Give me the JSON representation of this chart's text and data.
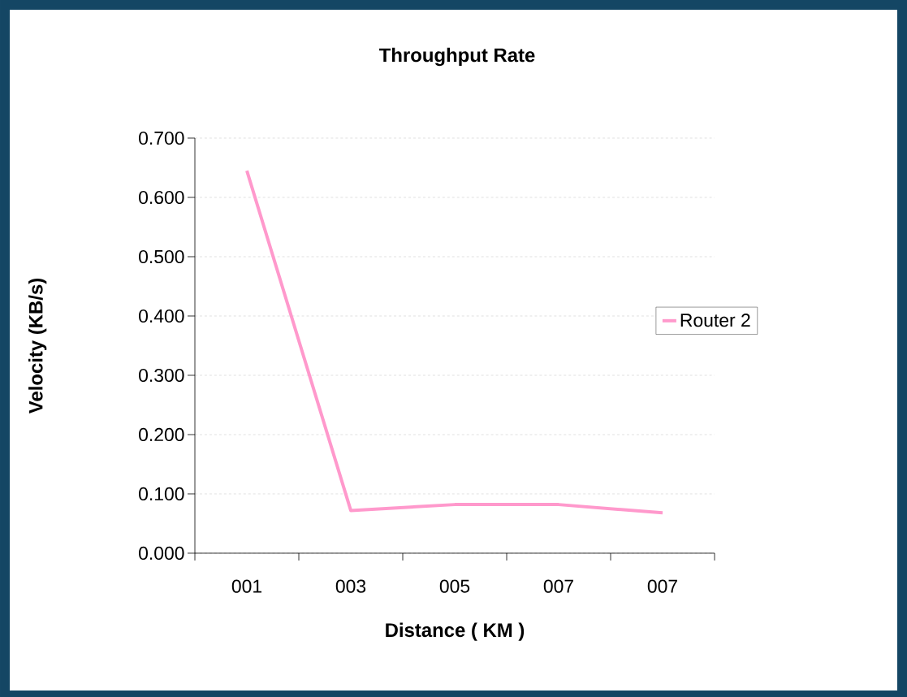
{
  "chart_data": {
    "type": "line",
    "title": "Throughput Rate",
    "xlabel": "Distance ( KM )",
    "ylabel": "Velocity (KB/s)",
    "categories": [
      "001",
      "003",
      "005",
      "007",
      "007"
    ],
    "series": [
      {
        "name": "Router 2",
        "color": "#ff99cc",
        "values": [
          0.645,
          0.072,
          0.082,
          0.082,
          0.068
        ]
      }
    ],
    "ylim": [
      0,
      0.7
    ],
    "yticks": [
      {
        "value": 0,
        "label": "0.000"
      },
      {
        "value": 0.1,
        "label": "0.100"
      },
      {
        "value": 0.2,
        "label": "0.200"
      },
      {
        "value": 0.3,
        "label": "0.300"
      },
      {
        "value": 0.4,
        "label": "0.400"
      },
      {
        "value": 0.5,
        "label": "0.500"
      },
      {
        "value": 0.6,
        "label": "0.600"
      },
      {
        "value": 0.7,
        "label": "0.700"
      }
    ],
    "grid": "y",
    "legend": "right",
    "marker": "none",
    "line_style": "solid"
  }
}
